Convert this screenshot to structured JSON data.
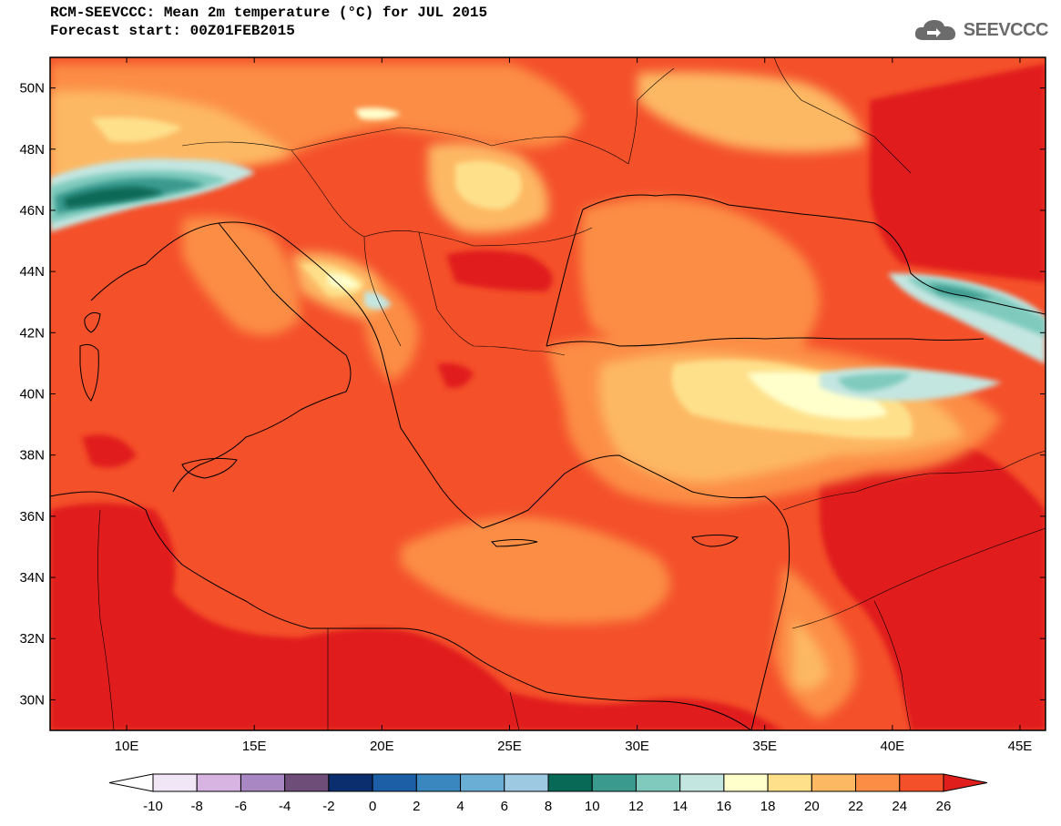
{
  "header": {
    "title": "RCM-SEEVCCC: Mean 2m temperature (°C) for JUL 2015",
    "subtitle": "Forecast start: 00Z01FEB2015"
  },
  "logo": {
    "text": "SEEVCCC",
    "icon": "cloud-icon"
  },
  "map": {
    "lat_labels": [
      "50N",
      "48N",
      "46N",
      "44N",
      "42N",
      "40N",
      "38N",
      "36N",
      "34N",
      "32N",
      "30N"
    ],
    "lon_labels": [
      "10E",
      "15E",
      "20E",
      "25E",
      "30E",
      "35E",
      "40E",
      "45E"
    ],
    "lon_range": [
      7,
      46
    ],
    "lat_range": [
      29,
      51
    ]
  },
  "colorbar": {
    "labels": [
      "-10",
      "-8",
      "-6",
      "-4",
      "-2",
      "0",
      "2",
      "4",
      "6",
      "8",
      "10",
      "12",
      "14",
      "16",
      "18",
      "20",
      "22",
      "24",
      "26"
    ],
    "under_color": "#ffffff",
    "over_color": "#e01f1c",
    "colors": [
      "#f0e6f5",
      "#d8b4e2",
      "#a987c2",
      "#6e4e78",
      "#0b2e6e",
      "#1d5fa6",
      "#3a87c0",
      "#6aaed6",
      "#9dc9e2",
      "#086957",
      "#3a9a8e",
      "#7fcabd",
      "#c4e6e1",
      "#ffffcc",
      "#fee08b",
      "#fdb863",
      "#fc8d45",
      "#f4502a"
    ]
  }
}
